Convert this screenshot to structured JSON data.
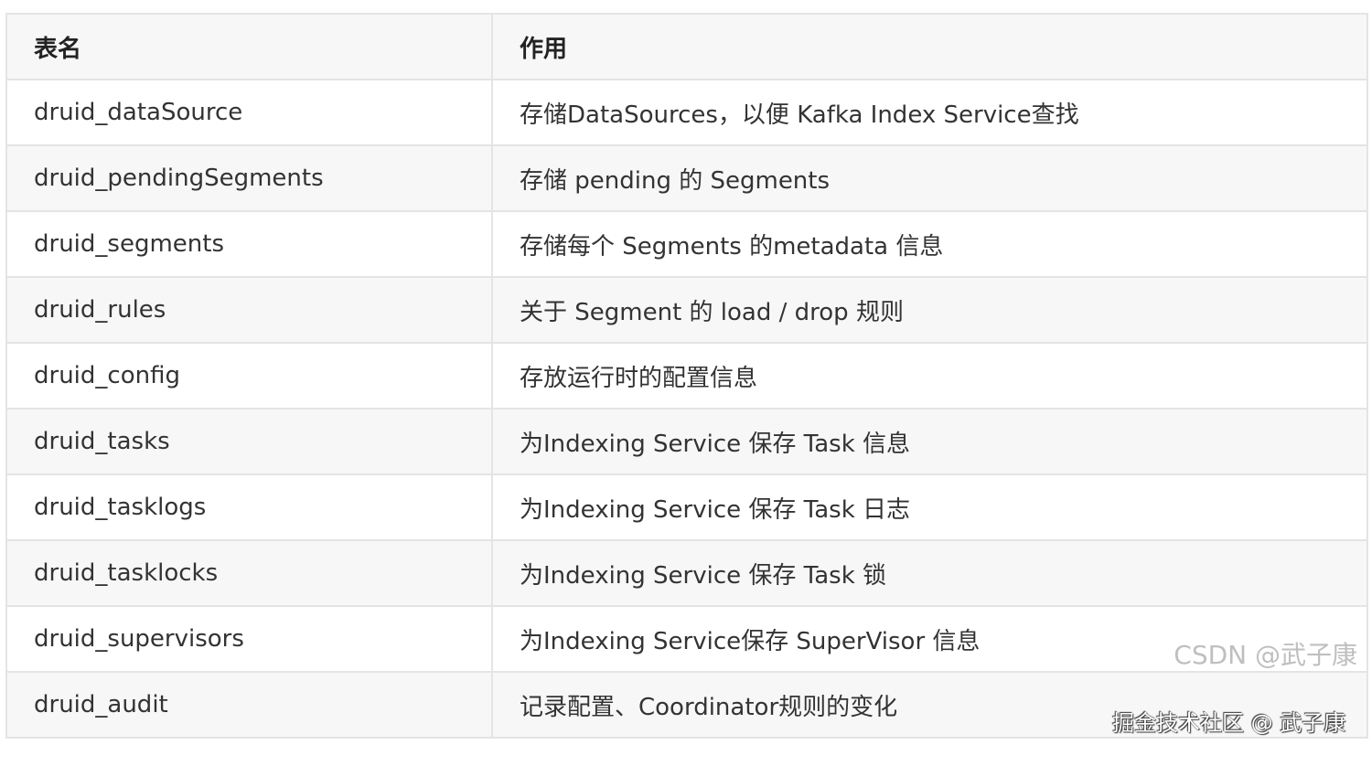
{
  "table": {
    "headers": [
      "表名",
      "作用"
    ],
    "rows": [
      [
        "druid_dataSource",
        "存储DataSources，以便 Kafka Index Service查找"
      ],
      [
        "druid_pendingSegments",
        "存储 pending 的 Segments"
      ],
      [
        "druid_segments",
        "存储每个 Segments 的metadata 信息"
      ],
      [
        "druid_rules",
        "关于 Segment 的 load / drop 规则"
      ],
      [
        "druid_config",
        "存放运行时的配置信息"
      ],
      [
        "druid_tasks",
        "为Indexing Service 保存 Task 信息"
      ],
      [
        "druid_tasklogs",
        "为Indexing Service 保存 Task 日志"
      ],
      [
        "druid_tasklocks",
        "为Indexing Service 保存 Task 锁"
      ],
      [
        "druid_supervisors",
        "为Indexing Service保存 SuperVisor 信息"
      ],
      [
        "druid_audit",
        "记录配置、Coordinator规则的变化"
      ]
    ]
  },
  "watermarks": [
    "掘金技术社区 @ 武子康",
    "CSDN @武子康"
  ]
}
